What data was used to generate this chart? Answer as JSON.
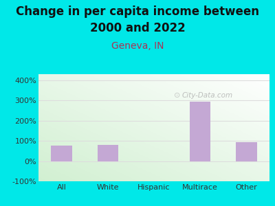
{
  "title_line1": "Change in per capita income between",
  "title_line2": "2000 and 2022",
  "subtitle": "Geneva, IN",
  "categories": [
    "All",
    "White",
    "Hispanic",
    "Multirace",
    "Other"
  ],
  "values": [
    75,
    80,
    -3,
    295,
    95
  ],
  "bar_color": "#c4a8d4",
  "background_outer": "#00e8e8",
  "title_fontsize": 12,
  "title_fontweight": "bold",
  "title_color": "#111111",
  "subtitle_fontsize": 10,
  "subtitle_color": "#aa3355",
  "tick_label_color": "#333333",
  "tick_fontsize": 8,
  "ylim": [
    -100,
    430
  ],
  "yticks": [
    -100,
    0,
    100,
    200,
    300,
    400
  ],
  "ytick_labels": [
    "-100%",
    "0%",
    "100%",
    "200%",
    "300%",
    "400%"
  ],
  "watermark": "City-Data.com",
  "grid_color": "#dddddd"
}
